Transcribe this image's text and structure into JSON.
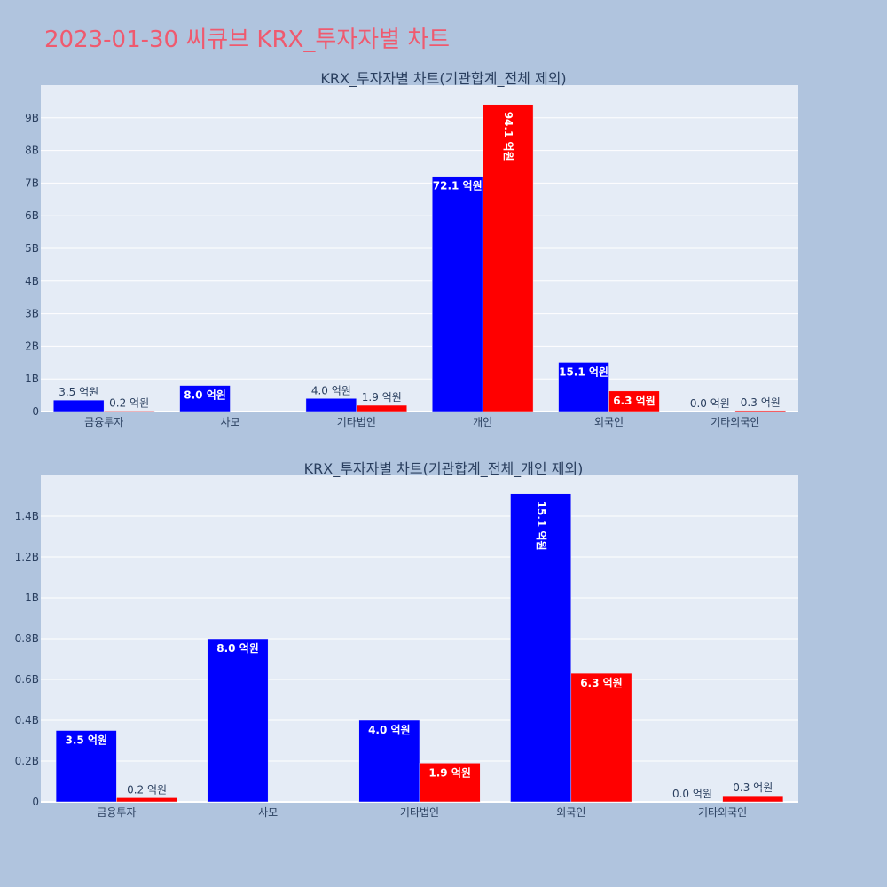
{
  "page": {
    "title": "2023-01-30 씨큐브 KRX_투자자별 차트"
  },
  "colors": {
    "background": "#b0c4de",
    "plot_background": "#e5ecf6",
    "title": "#ef5a6f",
    "buy": "#0000ff",
    "sell": "#ff0000",
    "text": "#2a3f5f",
    "grid": "#ffffff"
  },
  "chart_data": [
    {
      "type": "bar",
      "title": "KRX_투자자별 차트(기관합계_전체 제외)",
      "categories": [
        "금융투자",
        "사모",
        "기타법인",
        "개인",
        "외국인",
        "기타외국인"
      ],
      "series": [
        {
          "color": "#0000ff",
          "values": [
            350000000,
            800000000,
            400000000,
            7210000000,
            1510000000,
            0
          ],
          "labels": [
            "3.5 억원",
            "8.0 억원",
            "4.0 억원",
            "72.1 억원",
            "15.1 억원",
            "0.0 억원"
          ]
        },
        {
          "color": "#ff0000",
          "values": [
            20000000,
            0,
            190000000,
            9410000000,
            630000000,
            30000000
          ],
          "labels": [
            "0.2 억원",
            "",
            "1.9 억원",
            "94.1 억원",
            "6.3 억원",
            "0.3 억원"
          ]
        }
      ],
      "ylim": [
        0,
        10000000000
      ],
      "yticks": [
        0,
        1000000000,
        2000000000,
        3000000000,
        4000000000,
        5000000000,
        6000000000,
        7000000000,
        8000000000,
        9000000000
      ],
      "ytick_labels": [
        "0",
        "1B",
        "2B",
        "3B",
        "4B",
        "5B",
        "6B",
        "7B",
        "8B",
        "9B"
      ],
      "grid": true
    },
    {
      "type": "bar",
      "title": "KRX_투자자별 차트(기관합계_전체_개인 제외)",
      "categories": [
        "금융투자",
        "사모",
        "기타법인",
        "외국인",
        "기타외국인"
      ],
      "series": [
        {
          "color": "#0000ff",
          "values": [
            350000000,
            800000000,
            400000000,
            1510000000,
            0
          ],
          "labels": [
            "3.5 억원",
            "8.0 억원",
            "4.0 억원",
            "15.1 억원",
            "0.0 억원"
          ]
        },
        {
          "color": "#ff0000",
          "values": [
            20000000,
            0,
            190000000,
            630000000,
            30000000
          ],
          "labels": [
            "0.2 억원",
            "",
            "1.9 억원",
            "6.3 억원",
            "0.3 억원"
          ]
        }
      ],
      "ylim": [
        0,
        1600000000
      ],
      "yticks": [
        0,
        200000000,
        400000000,
        600000000,
        800000000,
        1000000000,
        1200000000,
        1400000000
      ],
      "ytick_labels": [
        "0",
        "0.2B",
        "0.4B",
        "0.6B",
        "0.8B",
        "1B",
        "1.2B",
        "1.4B"
      ],
      "grid": true
    }
  ]
}
